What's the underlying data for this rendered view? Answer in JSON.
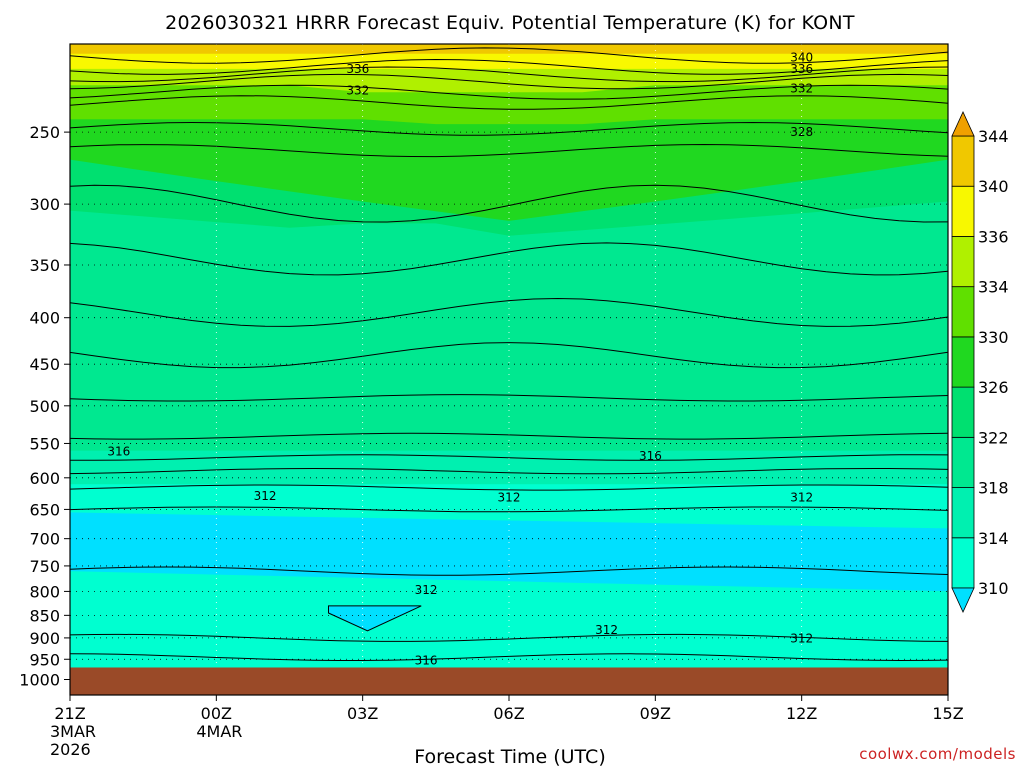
{
  "chart_data": {
    "type": "heatmap",
    "title": "2026030321 HRRR Forecast Equiv. Potential Temperature (K) for KONT",
    "xlabel": "Forecast Time (UTC)",
    "ylabel": "",
    "x_ticks": [
      {
        "hour": 0,
        "label": "21Z",
        "sub": [
          "3MAR",
          "2026"
        ]
      },
      {
        "hour": 3,
        "label": "00Z",
        "sub": [
          "4MAR"
        ]
      },
      {
        "hour": 6,
        "label": "03Z",
        "sub": []
      },
      {
        "hour": 9,
        "label": "06Z",
        "sub": []
      },
      {
        "hour": 12,
        "label": "09Z",
        "sub": []
      },
      {
        "hour": 15,
        "label": "12Z",
        "sub": []
      },
      {
        "hour": 18,
        "label": "15Z",
        "sub": []
      }
    ],
    "xlim": [
      0,
      18
    ],
    "y_ticks": [
      250,
      300,
      350,
      400,
      450,
      500,
      550,
      600,
      650,
      700,
      750,
      800,
      850,
      900,
      950,
      1000
    ],
    "ylim": [
      1040,
      200
    ],
    "y_scale": "log",
    "surface_pressure": 970,
    "surface_color": "#9a4a28",
    "colorbar": {
      "levels": [
        310,
        314,
        318,
        322,
        326,
        330,
        334,
        336,
        340,
        344
      ],
      "colors": [
        "#00e0ff",
        "#00ffd0",
        "#00f0b0",
        "#00e890",
        "#00e070",
        "#20d820",
        "#60e000",
        "#b0f000",
        "#f8f800",
        "#f0c800",
        "#f0a000"
      ],
      "extend": "both"
    },
    "contour_levels": [
      310,
      312,
      314,
      316,
      318,
      320,
      322,
      324,
      326,
      328,
      330,
      332,
      334,
      336,
      338,
      340,
      342
    ],
    "contour_labels": [
      {
        "text": "340",
        "hour": 15.0,
        "p": 207
      },
      {
        "text": "336",
        "hour": 5.9,
        "p": 213
      },
      {
        "text": "336",
        "hour": 15.0,
        "p": 213
      },
      {
        "text": "332",
        "hour": 5.9,
        "p": 225
      },
      {
        "text": "332",
        "hour": 15.0,
        "p": 224
      },
      {
        "text": "328",
        "hour": 15.0,
        "p": 250
      },
      {
        "text": "316",
        "hour": 1.0,
        "p": 561
      },
      {
        "text": "316",
        "hour": 11.9,
        "p": 568
      },
      {
        "text": "312",
        "hour": 4.0,
        "p": 628
      },
      {
        "text": "312",
        "hour": 9.0,
        "p": 631
      },
      {
        "text": "312",
        "hour": 15.0,
        "p": 631
      },
      {
        "text": "312",
        "hour": 7.3,
        "p": 797
      },
      {
        "text": "312",
        "hour": 11.0,
        "p": 882
      },
      {
        "text": "312",
        "hour": 15.0,
        "p": 901
      },
      {
        "text": "316",
        "hour": 7.3,
        "p": 953
      }
    ],
    "grid": true,
    "legend": "colorbar-right"
  },
  "credit": "coolwx.com/models"
}
